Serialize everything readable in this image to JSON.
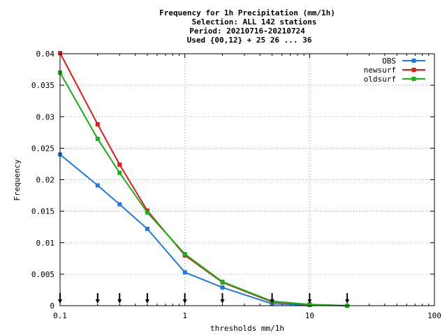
{
  "chart_data": {
    "type": "line",
    "title_lines": [
      "Frequency  for 1h Precipitation (mm/1h)",
      "Selection: ALL    142 stations",
      "Period: 20210716-20210724",
      "Used {00,12} + 25 26 ... 36"
    ],
    "xlabel": "thresholds mm/1h",
    "ylabel": "Frequency",
    "x_scale": "log",
    "xlim": [
      0.1,
      100
    ],
    "ylim": [
      0,
      0.04
    ],
    "x_tick_values": [
      0.1,
      1,
      10,
      100
    ],
    "x_tick_labels": [
      "0.1",
      "1",
      "10",
      "100"
    ],
    "y_tick_values": [
      0,
      0.005,
      0.01,
      0.015,
      0.02,
      0.025,
      0.03,
      0.035,
      0.04
    ],
    "y_tick_labels": [
      "0",
      "0.005",
      "0.01",
      "0.015",
      "0.02",
      "0.025",
      "0.03",
      "0.035",
      "0.04"
    ],
    "grid": true,
    "legend_position": "top-right",
    "thresholds": [
      0.1,
      0.2,
      0.3,
      0.5,
      1,
      2,
      5,
      10,
      20
    ],
    "series": [
      {
        "name": "OBS",
        "color": "#1f77e0",
        "values": [
          0.024,
          0.0191,
          0.0161,
          0.0122,
          0.0053,
          0.0029,
          0.0003,
          0.0001,
          0.0
        ]
      },
      {
        "name": "newsurf",
        "color": "#e01a1a",
        "values": [
          0.0401,
          0.0288,
          0.0224,
          0.0151,
          0.008,
          0.0037,
          0.0006,
          0.0002,
          0.0
        ]
      },
      {
        "name": "oldsurf",
        "color": "#17b017",
        "values": [
          0.037,
          0.0265,
          0.0211,
          0.0148,
          0.0082,
          0.0038,
          0.0007,
          0.0002,
          0.0
        ]
      }
    ],
    "threshold_markers": [
      0.1,
      0.2,
      0.3,
      0.5,
      1,
      2,
      5,
      10,
      20
    ]
  }
}
